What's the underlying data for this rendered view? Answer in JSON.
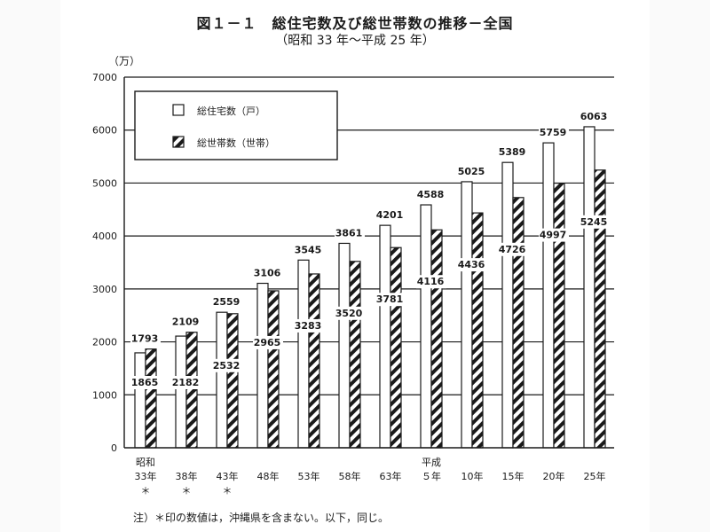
{
  "chart_data": {
    "type": "bar",
    "title": "図１－１　総住宅数及び総世帯数の推移－全国",
    "subtitle": "（昭和 33 年～平成 25 年）",
    "ylabel": "（万）",
    "ylim": [
      0,
      7000
    ],
    "yticks": [
      0,
      1000,
      2000,
      3000,
      4000,
      5000,
      6000,
      7000
    ],
    "grid": true,
    "legend_position": "top-left",
    "categories": [
      [
        "昭和",
        "33年",
        "＊"
      ],
      [
        "",
        "38年",
        "＊"
      ],
      [
        "",
        "43年",
        "＊"
      ],
      [
        "",
        "48年",
        ""
      ],
      [
        "",
        "53年",
        ""
      ],
      [
        "",
        "58年",
        ""
      ],
      [
        "",
        "63年",
        ""
      ],
      [
        "平成",
        "５年",
        ""
      ],
      [
        "",
        "10年",
        ""
      ],
      [
        "",
        "15年",
        ""
      ],
      [
        "",
        "20年",
        ""
      ],
      [
        "",
        "25年",
        ""
      ]
    ],
    "series": [
      {
        "name": "総住宅数（戸）",
        "style": "white",
        "values": [
          1793,
          2109,
          2559,
          3106,
          3545,
          3861,
          4201,
          4588,
          5025,
          5389,
          5759,
          6063
        ]
      },
      {
        "name": "総世帯数（世帯）",
        "style": "hatched",
        "values": [
          1865,
          2182,
          2532,
          2965,
          3283,
          3520,
          3781,
          4116,
          4436,
          4726,
          4997,
          5245
        ]
      }
    ],
    "note": "注）＊印の数値は，沖縄県を含まない。以下，同じ。"
  },
  "colors": {
    "ink": "#1a1a1a",
    "bar_fill": "#ffffff",
    "grid": "#1a1a1a"
  }
}
